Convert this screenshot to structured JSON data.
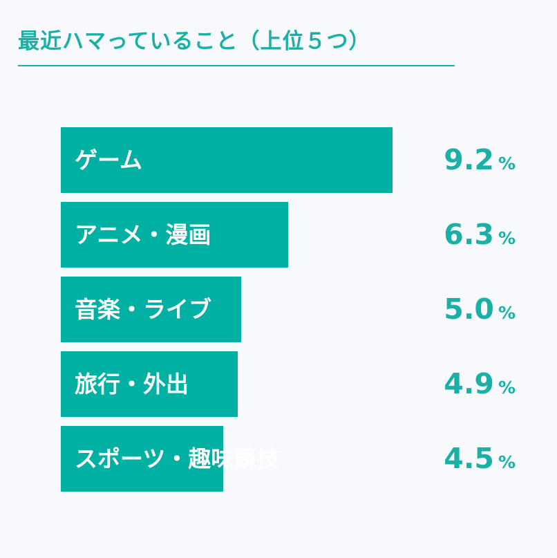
{
  "title": "最近ハマっていること（上位５つ）",
  "colors": {
    "accent": "#1bb0a6",
    "bar": "#00b1a3",
    "background": "#f7f9fc",
    "label": "#ffffff"
  },
  "chart_data": {
    "type": "bar",
    "orientation": "horizontal",
    "categories": [
      "ゲーム",
      "アニメ・漫画",
      "音楽・ライブ",
      "旅行・外出",
      "スポーツ・趣味競技"
    ],
    "values": [
      9.2,
      6.3,
      5.0,
      4.9,
      4.5
    ],
    "value_labels": [
      "9.2",
      "6.3",
      "5.0",
      "4.9",
      "4.5"
    ],
    "unit": "%",
    "grid": false,
    "legend": "none"
  }
}
